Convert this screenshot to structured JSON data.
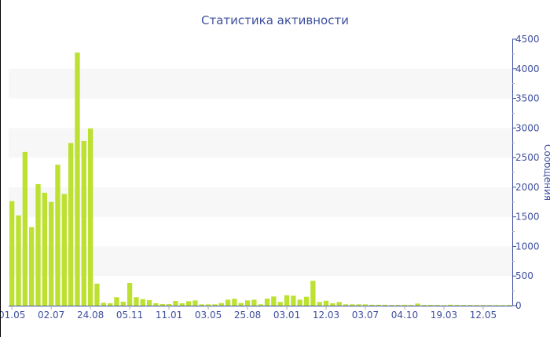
{
  "chart_data": {
    "type": "bar",
    "title": "Статистика активности",
    "ylabel": "Сообщения",
    "xlabel": "",
    "ylim": [
      0,
      4500
    ],
    "yticks": [
      0,
      500,
      1000,
      1500,
      2000,
      2500,
      3000,
      3500,
      4000,
      4500
    ],
    "y_axis_position": "right",
    "grid": "alternating horizontal bands",
    "bar_color": "#bce131",
    "axis_color": "#3e4f9e",
    "x_tick_labels": [
      "01.05",
      "02.07",
      "24.08",
      "05.11",
      "11.01",
      "03.05",
      "25.08",
      "03.01",
      "12.03",
      "03.07",
      "04.10",
      "19.03",
      "12.05"
    ],
    "x_tick_every": 6,
    "values": [
      1765,
      1523,
      2596,
      1325,
      2053,
      1907,
      1752,
      2380,
      1885,
      2746,
      4274,
      2781,
      2993,
      371,
      49,
      40,
      142,
      66,
      384,
      142,
      110,
      93,
      40,
      26,
      26,
      79,
      40,
      75,
      88,
      22,
      22,
      22,
      44,
      101,
      115,
      44,
      88,
      101,
      22,
      119,
      155,
      62,
      176,
      168,
      101,
      150,
      420,
      62,
      83,
      40,
      62,
      22,
      22,
      22,
      22,
      15,
      15,
      15,
      12,
      12,
      15,
      12,
      35,
      12,
      12,
      12,
      10,
      15,
      12,
      12,
      12,
      10,
      12,
      10,
      10,
      10,
      12
    ]
  }
}
